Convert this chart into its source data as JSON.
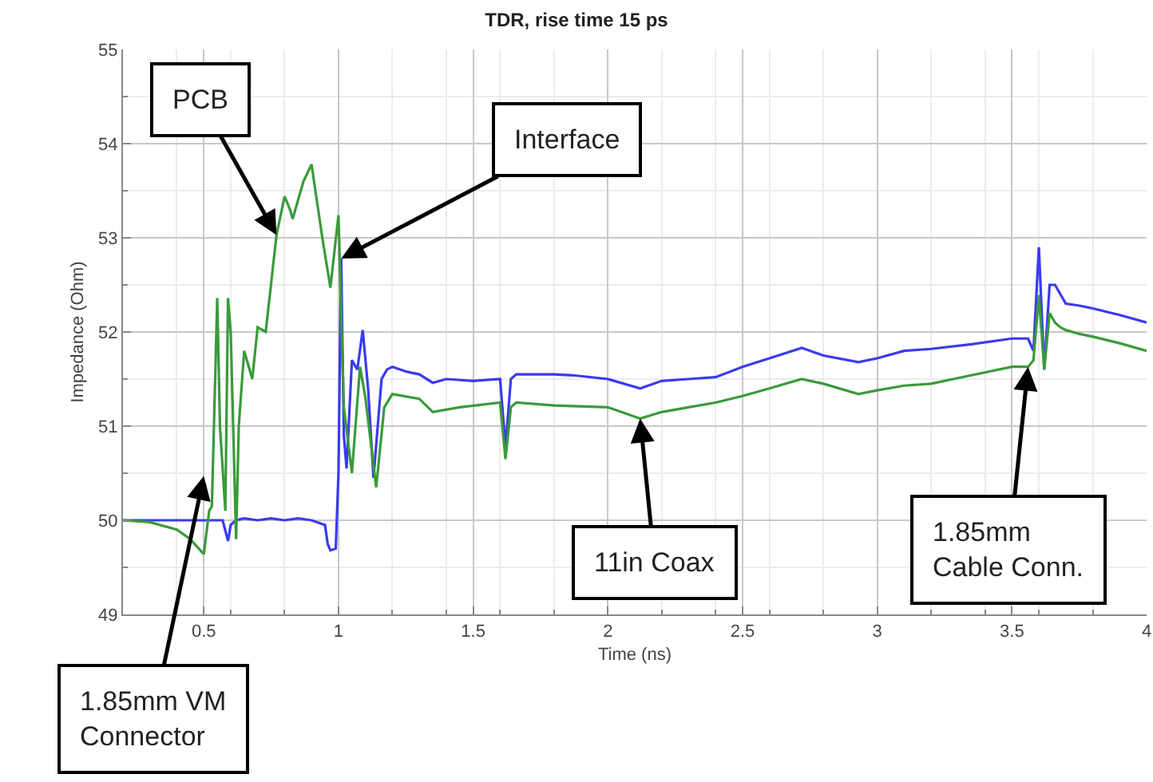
{
  "chart_data": {
    "type": "line",
    "title": "TDR, rise time 15 ps",
    "xlabel": "Time (ns)",
    "ylabel": "Impedance (Ohm)",
    "xlim": [
      0.2,
      4.0
    ],
    "ylim": [
      49,
      55
    ],
    "xticks": [
      0.5,
      1,
      1.5,
      2,
      2.5,
      3,
      3.5,
      4
    ],
    "yticks": [
      49,
      50,
      51,
      52,
      53,
      54,
      55
    ],
    "grid": true,
    "marker": "none",
    "line_style": "solid",
    "series": [
      {
        "color": "#3a3af0",
        "x": [
          0.2,
          0.3,
          0.4,
          0.5,
          0.57,
          0.59,
          0.6,
          0.62,
          0.65,
          0.7,
          0.75,
          0.8,
          0.85,
          0.9,
          0.95,
          0.96,
          0.97,
          0.99,
          1.0,
          1.01,
          1.02,
          1.03,
          1.05,
          1.07,
          1.09,
          1.11,
          1.13,
          1.16,
          1.18,
          1.2,
          1.25,
          1.3,
          1.35,
          1.4,
          1.5,
          1.6,
          1.62,
          1.64,
          1.66,
          1.7,
          1.8,
          1.87,
          2.0,
          2.12,
          2.2,
          2.3,
          2.4,
          2.5,
          2.6,
          2.72,
          2.8,
          2.93,
          3.0,
          3.1,
          3.2,
          3.35,
          3.5,
          3.56,
          3.58,
          3.6,
          3.62,
          3.64,
          3.66,
          3.68,
          3.7,
          3.75,
          3.8,
          3.9,
          4.0
        ],
        "values": [
          50.0,
          50.0,
          50.0,
          50.0,
          50.0,
          49.78,
          49.95,
          50.0,
          50.02,
          50.0,
          50.02,
          50.0,
          50.02,
          50.0,
          49.95,
          49.75,
          49.68,
          49.7,
          50.5,
          52.78,
          50.9,
          50.55,
          51.7,
          51.6,
          52.02,
          51.4,
          50.45,
          51.5,
          51.6,
          51.63,
          51.58,
          51.55,
          51.46,
          51.5,
          51.48,
          51.5,
          50.78,
          51.5,
          51.55,
          51.55,
          51.55,
          51.54,
          51.5,
          51.4,
          51.48,
          51.5,
          51.52,
          51.63,
          51.72,
          51.83,
          51.75,
          51.68,
          51.72,
          51.8,
          51.82,
          51.87,
          51.93,
          51.93,
          51.8,
          52.9,
          51.6,
          52.5,
          52.5,
          52.4,
          52.3,
          52.28,
          52.25,
          52.18,
          52.1
        ]
      },
      {
        "color": "#3a9a3a",
        "x": [
          0.2,
          0.3,
          0.4,
          0.45,
          0.5,
          0.52,
          0.53,
          0.55,
          0.56,
          0.58,
          0.59,
          0.6,
          0.62,
          0.63,
          0.65,
          0.68,
          0.7,
          0.73,
          0.77,
          0.8,
          0.82,
          0.83,
          0.87,
          0.9,
          0.94,
          0.97,
          1.0,
          1.02,
          1.05,
          1.08,
          1.1,
          1.14,
          1.17,
          1.2,
          1.3,
          1.35,
          1.45,
          1.6,
          1.62,
          1.64,
          1.66,
          1.8,
          2.0,
          2.12,
          2.2,
          2.3,
          2.4,
          2.5,
          2.6,
          2.72,
          2.8,
          2.93,
          3.0,
          3.1,
          3.2,
          3.35,
          3.5,
          3.56,
          3.58,
          3.6,
          3.62,
          3.64,
          3.66,
          3.68,
          3.7,
          3.75,
          3.8,
          3.9,
          4.0
        ],
        "values": [
          50.0,
          49.98,
          49.9,
          49.8,
          49.64,
          50.1,
          50.15,
          52.36,
          51.0,
          50.1,
          52.36,
          52.0,
          49.8,
          51.0,
          51.8,
          51.5,
          52.05,
          52.0,
          53.03,
          53.44,
          53.3,
          53.2,
          53.6,
          53.78,
          53.0,
          52.47,
          53.24,
          51.2,
          50.5,
          51.63,
          51.3,
          50.35,
          51.2,
          51.34,
          51.29,
          51.15,
          51.2,
          51.25,
          50.65,
          51.2,
          51.25,
          51.22,
          51.2,
          51.08,
          51.15,
          51.2,
          51.25,
          51.32,
          51.4,
          51.5,
          51.45,
          51.34,
          51.38,
          51.43,
          51.45,
          51.54,
          51.63,
          51.63,
          51.7,
          52.39,
          51.6,
          52.2,
          52.1,
          52.05,
          52.02,
          51.98,
          51.95,
          51.88,
          51.8
        ]
      }
    ],
    "annotations": [
      {
        "text": "PCB",
        "x": 0.77,
        "y": 53.03
      },
      {
        "text": "Interface",
        "x": 1.01,
        "y": 52.78
      },
      {
        "text": "1.85mm VM\nConnector",
        "x": 0.5,
        "y": 50.47
      },
      {
        "text": "11in Coax",
        "x": 2.12,
        "y": 51.08
      },
      {
        "text": "1.85mm\nCable Conn.",
        "x": 3.56,
        "y": 51.63
      }
    ]
  }
}
